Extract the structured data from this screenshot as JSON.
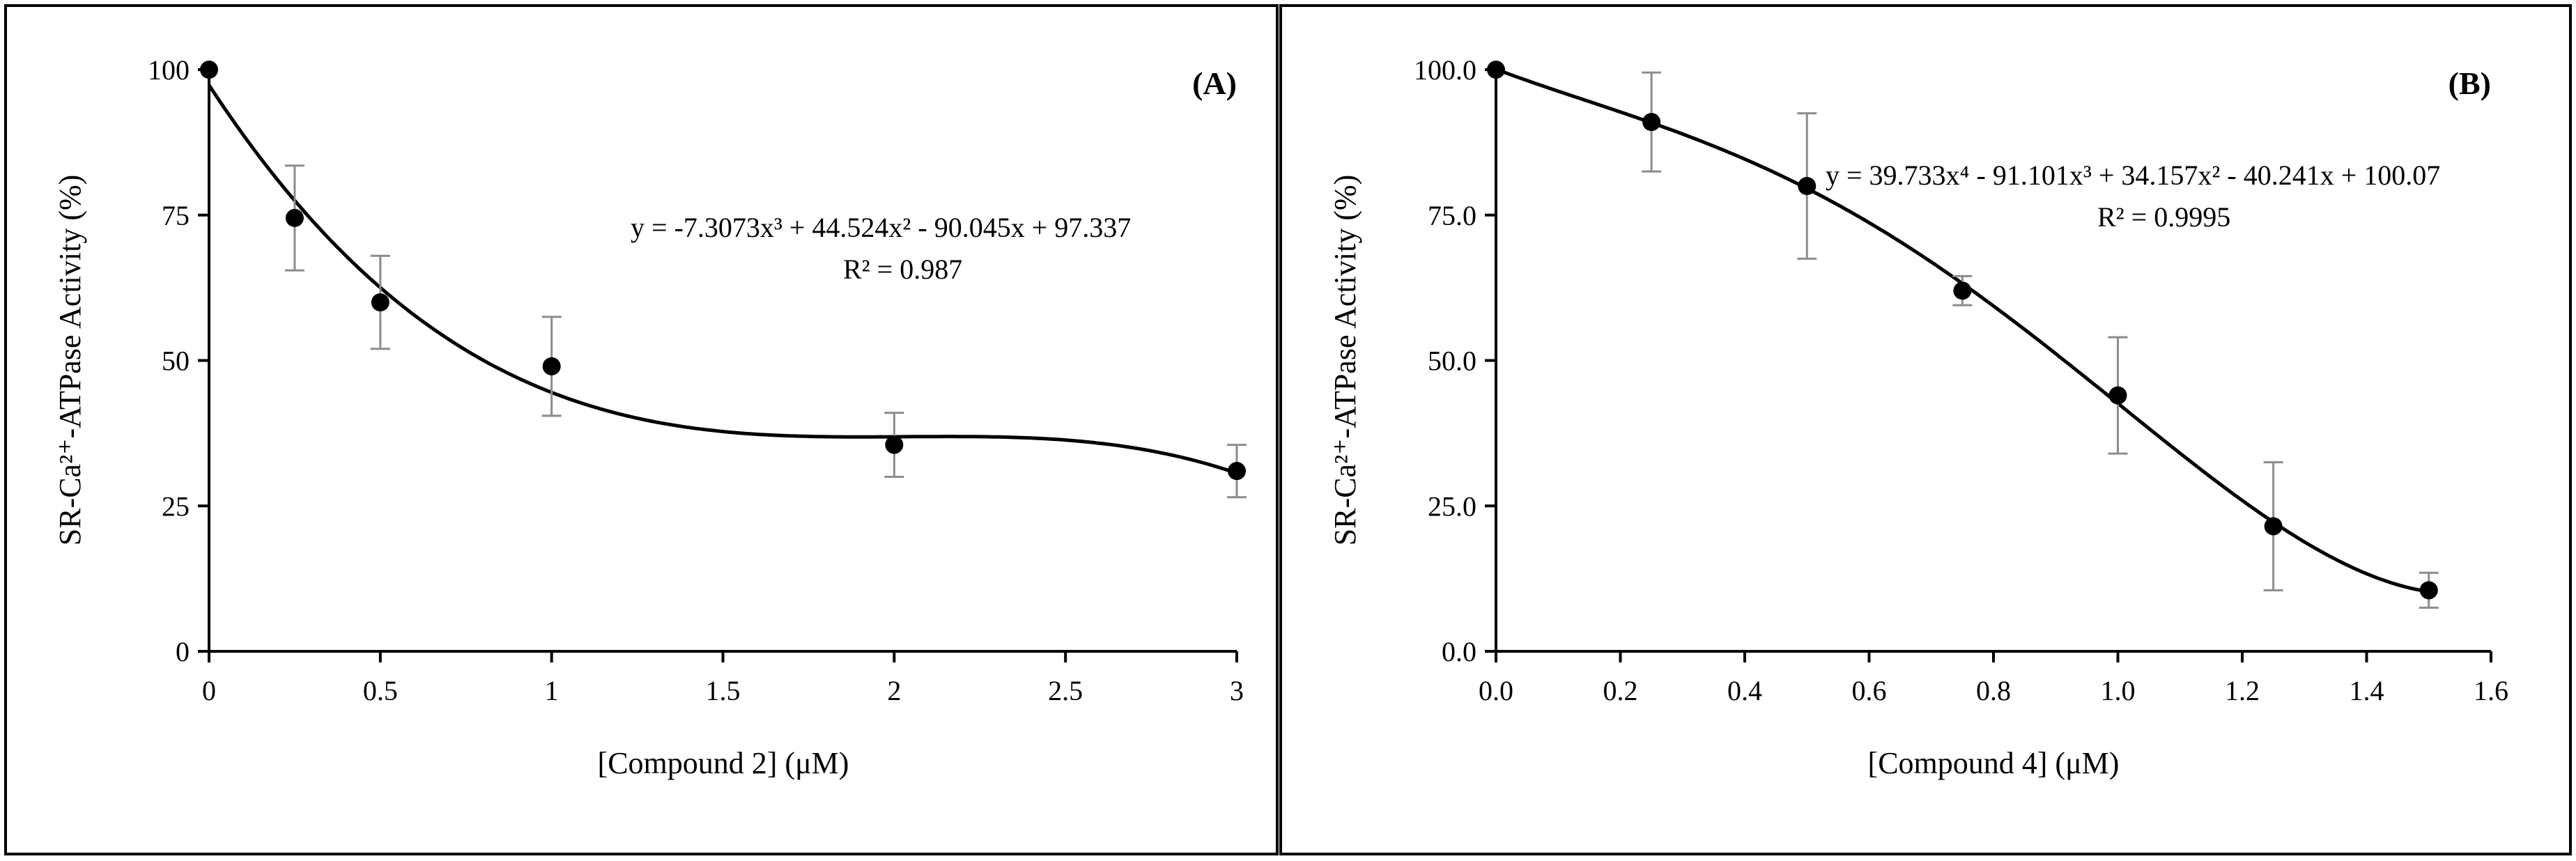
{
  "chart_data": [
    {
      "type": "scatter",
      "panel_label": "(A)",
      "xlabel": "[Compound 2] (μM)",
      "ylabel": "SR-Ca²⁺-ATPase Activity (%)",
      "xlim": [
        0,
        3
      ],
      "ylim": [
        0,
        100
      ],
      "x_ticks": [
        "0",
        "0.5",
        "1",
        "1.5",
        "2",
        "2.5",
        "3"
      ],
      "y_ticks": [
        "0",
        "25",
        "50",
        "75",
        "100"
      ],
      "x": [
        0,
        0.25,
        0.5,
        1,
        2,
        3
      ],
      "y": [
        100,
        74.5,
        60,
        49,
        35.5,
        31
      ],
      "err": [
        0,
        9,
        8,
        8.5,
        5.5,
        4.5
      ],
      "fit": {
        "kind": "polynomial",
        "coefficients_high_to_low": [
          -7.3073,
          44.524,
          -90.045,
          97.337
        ],
        "equation_text": "y = -7.3073x³ + 44.524x² - 90.045x + 97.337",
        "r2_text": "R² = 0.987"
      }
    },
    {
      "type": "scatter",
      "panel_label": "(B)",
      "xlabel": "[Compound 4] (μM)",
      "ylabel": "SR-Ca²⁺-ATPase Activity (%)",
      "xlim": [
        0,
        1.6
      ],
      "ylim": [
        0,
        100
      ],
      "x_ticks": [
        "0.0",
        "0.2",
        "0.4",
        "0.6",
        "0.8",
        "1.0",
        "1.2",
        "1.4",
        "1.6"
      ],
      "y_ticks": [
        "0.0",
        "25.0",
        "50.0",
        "75.0",
        "100.0"
      ],
      "x": [
        0,
        0.25,
        0.5,
        0.75,
        1.0,
        1.25,
        1.5
      ],
      "y": [
        100,
        91,
        80,
        62,
        44,
        21.5,
        10.5
      ],
      "err": [
        0,
        8.5,
        12.5,
        2.5,
        10,
        11,
        3
      ],
      "fit": {
        "kind": "polynomial",
        "coefficients_high_to_low": [
          39.733,
          -91.101,
          34.157,
          -40.241,
          100.07
        ],
        "equation_text": "y = 39.733x⁴ - 91.101x³ + 34.157x² - 40.241x + 100.07",
        "r2_text": "R² = 0.9995"
      }
    }
  ]
}
